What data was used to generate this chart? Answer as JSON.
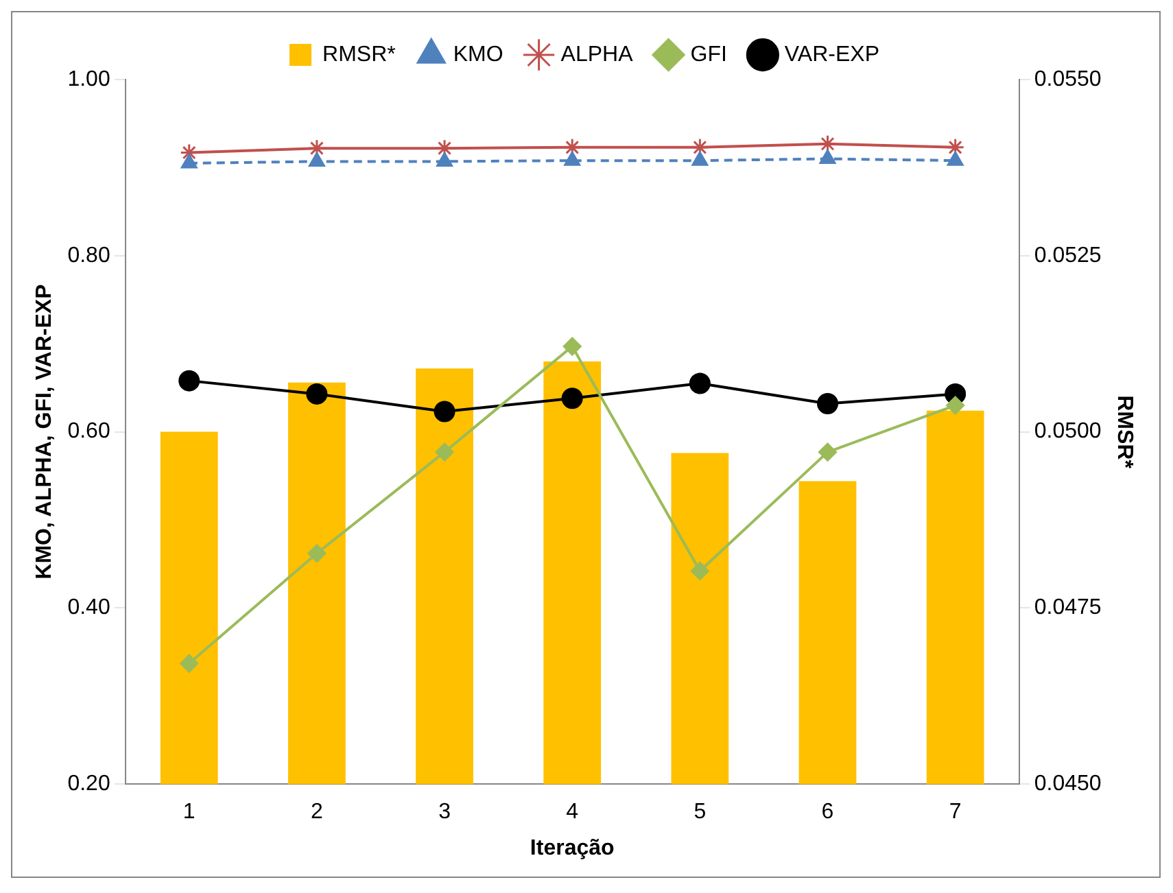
{
  "chart_data": {
    "type": "bar",
    "xlabel": "Iteração",
    "ylabel": "KMO, ALPHA, GFI, VAR-EXP",
    "y2label": "RMSR*",
    "categories": [
      "1",
      "2",
      "3",
      "4",
      "5",
      "6",
      "7"
    ],
    "series": [
      {
        "name": "RMSR*",
        "axis": "y2",
        "color": "#ffc000",
        "values": [
          0.05,
          0.0507,
          0.0509,
          0.051,
          0.0497,
          0.0493,
          0.0503
        ]
      },
      {
        "name": "KMO",
        "type": "line",
        "color": "#4f81bd",
        "marker": "triangle",
        "line_style": "dashed",
        "values": [
          0.905,
          0.907,
          0.907,
          0.908,
          0.908,
          0.91,
          0.908
        ]
      },
      {
        "name": "ALPHA",
        "type": "line",
        "color": "#c0504d",
        "marker": "cross",
        "line_style": "solid",
        "values": [
          0.917,
          0.922,
          0.922,
          0.923,
          0.923,
          0.927,
          0.923
        ]
      },
      {
        "name": "GFI",
        "type": "line",
        "color": "#9bbb59",
        "marker": "diamond",
        "line_style": "solid",
        "values": [
          0.337,
          0.462,
          0.577,
          0.697,
          0.442,
          0.577,
          0.63
        ]
      },
      {
        "name": "VAR-EXP",
        "type": "line",
        "color": "#000000",
        "marker": "circle",
        "line_style": "solid",
        "values": [
          0.658,
          0.643,
          0.623,
          0.638,
          0.655,
          0.632,
          0.643
        ]
      }
    ],
    "ylim": [
      0.2,
      1.0
    ],
    "yticks": [
      {
        "value": 0.2,
        "label": "0.20"
      },
      {
        "value": 0.4,
        "label": "0.40"
      },
      {
        "value": 0.6,
        "label": "0.60"
      },
      {
        "value": 0.8,
        "label": "0.80"
      },
      {
        "value": 1.0,
        "label": "1.00"
      }
    ],
    "y2lim": [
      0.045,
      0.055
    ],
    "y2ticks": [
      {
        "value": 0.045,
        "label": "0.0450"
      },
      {
        "value": 0.0475,
        "label": "0.0475"
      },
      {
        "value": 0.05,
        "label": "0.0500"
      },
      {
        "value": 0.0525,
        "label": "0.0525"
      },
      {
        "value": 0.055,
        "label": "0.0550"
      }
    ],
    "legend": "top",
    "grid": false
  }
}
